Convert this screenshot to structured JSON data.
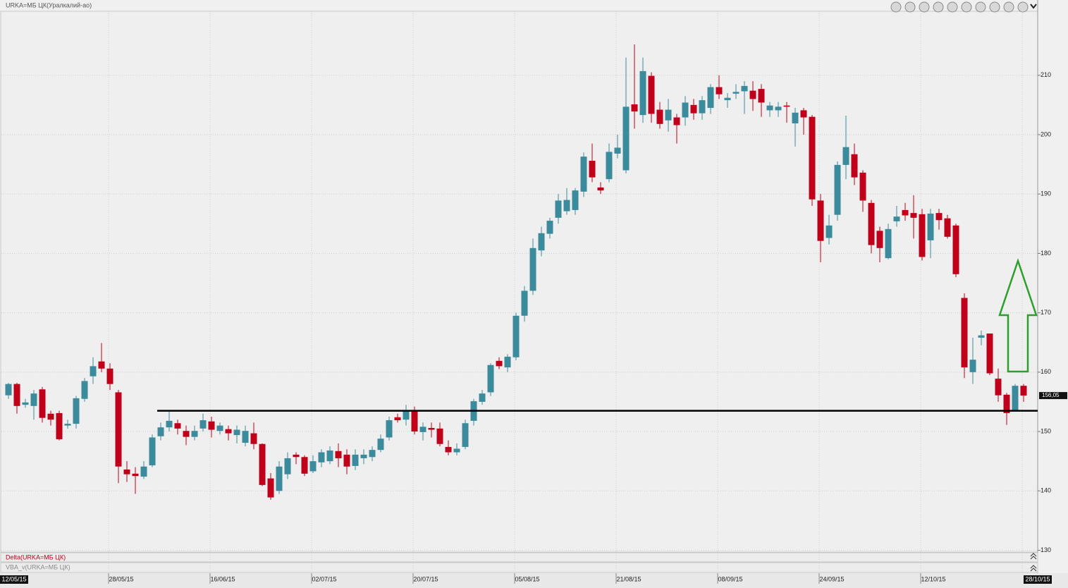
{
  "chart_data": {
    "type": "candlestick",
    "title": "URKA=МБ ЦК(Уралкалий-ао)",
    "panels": [
      "Delta(URKA=МБ ЦК)",
      "VBA_v(URKA=МБ ЦК)"
    ],
    "categories": [
      "12/05/15",
      null,
      null,
      null,
      null,
      null,
      null,
      null,
      null,
      null,
      null,
      null,
      "28/05/15",
      null,
      null,
      null,
      null,
      null,
      null,
      null,
      null,
      null,
      null,
      null,
      "16/06/15",
      null,
      null,
      null,
      null,
      null,
      null,
      null,
      null,
      null,
      null,
      null,
      "02/07/15",
      null,
      null,
      null,
      null,
      null,
      null,
      null,
      null,
      null,
      null,
      null,
      "20/07/15",
      null,
      null,
      null,
      null,
      null,
      null,
      null,
      null,
      null,
      null,
      null,
      "05/08/15",
      null,
      null,
      null,
      null,
      null,
      null,
      null,
      null,
      null,
      null,
      null,
      "21/08/15",
      null,
      null,
      null,
      null,
      null,
      null,
      null,
      null,
      null,
      null,
      null,
      "08/09/15",
      null,
      null,
      null,
      null,
      null,
      null,
      null,
      null,
      null,
      null,
      null,
      "24/09/15",
      null,
      null,
      null,
      null,
      null,
      null,
      null,
      null,
      null,
      null,
      null,
      "12/10/15",
      null,
      null,
      null,
      null,
      null,
      null,
      null,
      null,
      null,
      null,
      null,
      "28/10/15"
    ],
    "open": [
      156.1,
      158,
      154.5,
      154.3,
      157.1,
      153,
      153.1,
      151,
      151.3,
      155.5,
      159.3,
      161.8,
      160.6,
      156.6,
      143.6,
      142.9,
      142.4,
      144.3,
      149.2,
      150.7,
      151.4,
      150.1,
      149.1,
      150.5,
      151.7,
      150.1,
      150.4,
      149.4,
      148.1,
      149.7,
      147.9,
      142.1,
      140,
      142.8,
      146.1,
      145.7,
      143.3,
      144.8,
      145,
      146.7,
      146.1,
      144.2,
      145.5,
      145.7,
      146.9,
      149,
      152.4,
      152,
      153.5,
      149.9,
      150.6,
      150.5,
      147.4,
      146.5,
      147.4,
      151.8,
      155,
      156.6,
      161.9,
      160.8,
      162.5,
      169.5,
      173.7,
      180.5,
      183.3,
      186,
      187.1,
      187.3,
      190.4,
      195.6,
      191.1,
      192.5,
      196.8,
      194,
      205.1,
      203.3,
      209.9,
      204.2,
      202.4,
      202.9,
      202.9,
      205,
      203.6,
      204.5,
      208,
      205.8,
      206.9,
      207.3,
      207.4,
      207.7,
      204.1,
      204.1,
      204.9,
      201.9,
      204.1,
      203,
      188.9,
      182.6,
      186.5,
      194.9,
      196.7,
      193.6,
      188.5,
      183.8,
      179.2,
      185.4,
      187.3,
      186.8,
      186.6,
      182.2,
      186.8,
      185.9,
      184.7,
      172.5,
      160,
      165.8,
      166.5,
      158.9,
      156.2,
      153.6,
      157.7
    ],
    "high": [
      158.2,
      158.2,
      155.5,
      157,
      157.5,
      153.5,
      153.5,
      152,
      156,
      159,
      162.5,
      164.9,
      161.5,
      157,
      145,
      144,
      145,
      149.5,
      151.5,
      153.5,
      152,
      151,
      151,
      153,
      152.5,
      151.5,
      151,
      151,
      151,
      151.5,
      148,
      143,
      145,
      146.5,
      146.5,
      146,
      146,
      147,
      147.5,
      148,
      147,
      147,
      147,
      147.5,
      149.5,
      152.5,
      153,
      154.5,
      154.2,
      151.5,
      151.5,
      151.5,
      148.5,
      148,
      152,
      155.5,
      157,
      161.5,
      162.5,
      163,
      170,
      174.5,
      182.5,
      184.5,
      186,
      190,
      191,
      191,
      197,
      198.5,
      192,
      198.5,
      200,
      213,
      215.2,
      213,
      210.5,
      205.5,
      206,
      203.5,
      206.5,
      206,
      206.5,
      208.5,
      210,
      207,
      208.5,
      209,
      209,
      208.5,
      205.5,
      205.5,
      205.5,
      204.5,
      204.5,
      203.3,
      190,
      186.5,
      195.5,
      203.2,
      198.5,
      194,
      189,
      184.5,
      185,
      188,
      188.5,
      189.8,
      187.5,
      187.5,
      187.5,
      186.5,
      185,
      173.3,
      165.8,
      167,
      166.5,
      160.6,
      156.5,
      158,
      158
    ],
    "low": [
      155.5,
      153,
      154,
      152,
      151.5,
      151,
      148.5,
      150.5,
      150.5,
      155,
      158,
      160,
      157,
      141.3,
      141.5,
      139.5,
      142,
      144,
      148.5,
      150,
      149.5,
      147.7,
      148.5,
      150,
      149,
      149.5,
      148.5,
      148,
      147.5,
      147,
      140.8,
      138.5,
      139.5,
      142,
      144.5,
      142.5,
      143,
      144,
      144.5,
      144,
      142.8,
      143.5,
      144.5,
      145,
      146.5,
      148.5,
      151.5,
      151,
      149.5,
      148.5,
      149,
      147.5,
      146,
      146,
      147,
      151,
      154.5,
      156,
      160.5,
      160,
      162,
      168.5,
      173,
      179.5,
      182.5,
      185,
      186.5,
      186.5,
      189.5,
      192,
      190,
      192,
      196,
      193.5,
      201,
      202,
      202,
      201,
      200.5,
      198.5,
      201.5,
      202.5,
      202.5,
      203.5,
      206,
      204.5,
      206,
      203.5,
      204,
      203,
      203,
      203,
      202,
      198,
      200,
      188,
      178.5,
      181.5,
      185.5,
      192.5,
      191.5,
      187,
      180,
      178.5,
      179,
      184.5,
      185.5,
      182.5,
      178.8,
      179.2,
      184,
      182.5,
      176,
      159,
      158,
      164.5,
      159.5,
      155,
      151.1,
      153.4,
      155
    ],
    "close": [
      158,
      154.3,
      154.9,
      156.4,
      152.3,
      152,
      148.7,
      151.3,
      155.6,
      158.5,
      161,
      160.6,
      158,
      144.1,
      142.8,
      142.5,
      144.1,
      149,
      150.7,
      151.8,
      150.5,
      149.1,
      150.1,
      151.9,
      150.3,
      151,
      149.7,
      150.3,
      150.1,
      147.9,
      141,
      138.9,
      144.1,
      145.5,
      145.7,
      142.9,
      145,
      146.5,
      146.8,
      145.5,
      144.1,
      146.1,
      146.1,
      146.9,
      148.8,
      151.9,
      151.9,
      153.5,
      150,
      150.8,
      150.3,
      147.9,
      146.5,
      147.1,
      151.4,
      155.1,
      156.4,
      161.2,
      161,
      162.6,
      169.5,
      173.7,
      180.9,
      183.4,
      185.5,
      188.9,
      189,
      190.6,
      196.3,
      192.8,
      190.6,
      197.1,
      197.8,
      204.7,
      203.9,
      210.7,
      203.5,
      201.8,
      204.2,
      201.6,
      205.4,
      203.6,
      205.8,
      208,
      206.8,
      206.2,
      207.2,
      208.2,
      206,
      205.4,
      204.9,
      204.7,
      204.7,
      203.7,
      202.9,
      189.1,
      182.1,
      184.7,
      194.9,
      197.9,
      192.8,
      188.9,
      181.4,
      180.9,
      184.1,
      186.2,
      186.4,
      186,
      179.4,
      186.7,
      185.6,
      182.8,
      176.5,
      160.8,
      162.1,
      166.2,
      159.8,
      156.1,
      153.1,
      157.7,
      156.05
    ],
    "up_color": "#3b8b9c",
    "down_color": "#c0001a",
    "ylim": [
      129.7,
      220.3
    ],
    "yticks": [
      130,
      140,
      150,
      160,
      170,
      180,
      190,
      200,
      210
    ],
    "grid": true,
    "last_price": {
      "value": 156.05,
      "label": "156,05"
    },
    "support_level": 153.5
  }
}
